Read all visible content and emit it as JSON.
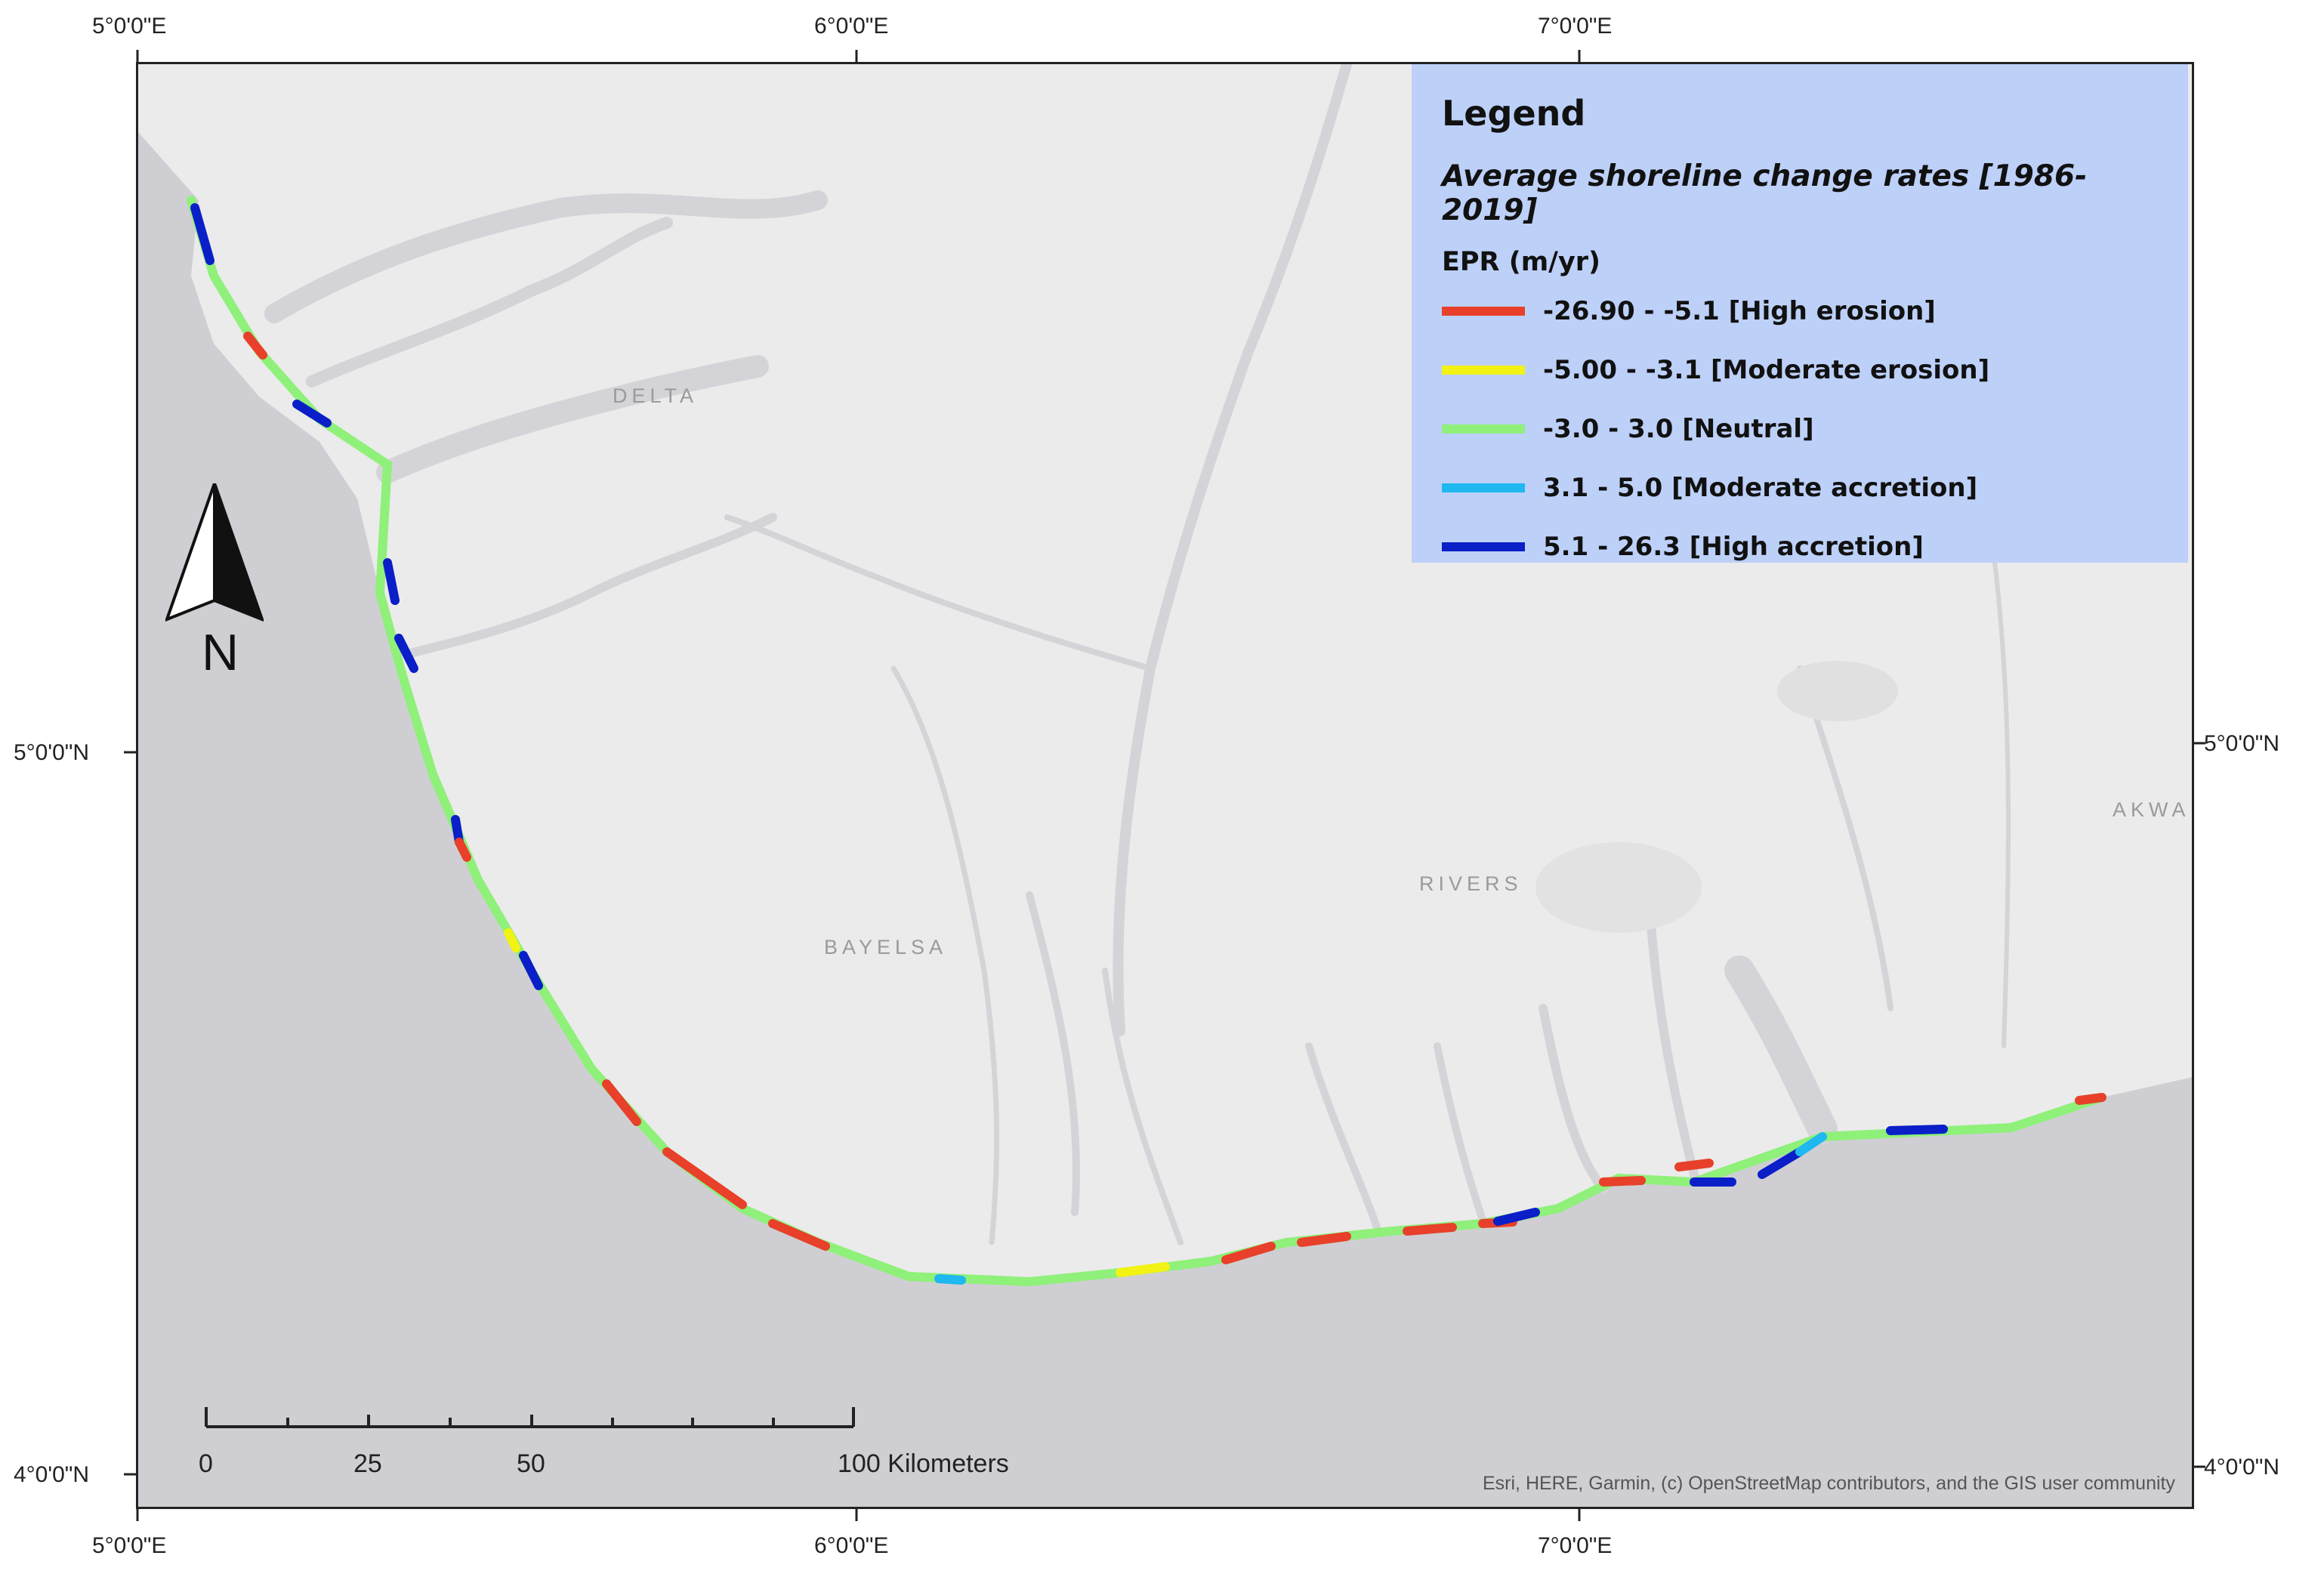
{
  "graticule": {
    "top": [
      "5°0'0\"E",
      "6°0'0\"E",
      "7°0'0\"E"
    ],
    "bottom": [
      "5°0'0\"E",
      "6°0'0\"E",
      "7°0'0\"E"
    ],
    "left": [
      "5°0'0\"N",
      "4°0'0\"N"
    ],
    "right": [
      "5°0'0\"N",
      "4°0'0\"N"
    ]
  },
  "legend": {
    "title": "Legend",
    "subtitle": "Average shoreline change rates [1986-2019]",
    "field": "EPR (m/yr)",
    "items": [
      {
        "label": "-26.90 - -5.1 [High erosion]",
        "color": "#e8402a"
      },
      {
        "label": "-5.00 - -3.1 [Moderate erosion]",
        "color": "#f2f214"
      },
      {
        "label": "-3.0 - 3.0 [Neutral]",
        "color": "#8ff07a"
      },
      {
        "label": "3.1 - 5.0 [Moderate accretion]",
        "color": "#1fb8f0"
      },
      {
        "label": "5.1 - 26.3 [High accretion]",
        "color": "#0a1fc8"
      }
    ]
  },
  "places": {
    "delta": "DELTA",
    "bayelsa": "BAYELSA",
    "rivers": "RIVERS",
    "akwa": "AKWA"
  },
  "north_label": "N",
  "scale": {
    "ticks": [
      "0",
      "25",
      "50",
      "100 Kilometers"
    ]
  },
  "attribution": "Esri, HERE, Garmin, (c) OpenStreetMap contributors, and the GIS user community",
  "colors": {
    "sea": "#cfcfd3",
    "land": "#ebebeb",
    "water": "#cfcfd3"
  }
}
